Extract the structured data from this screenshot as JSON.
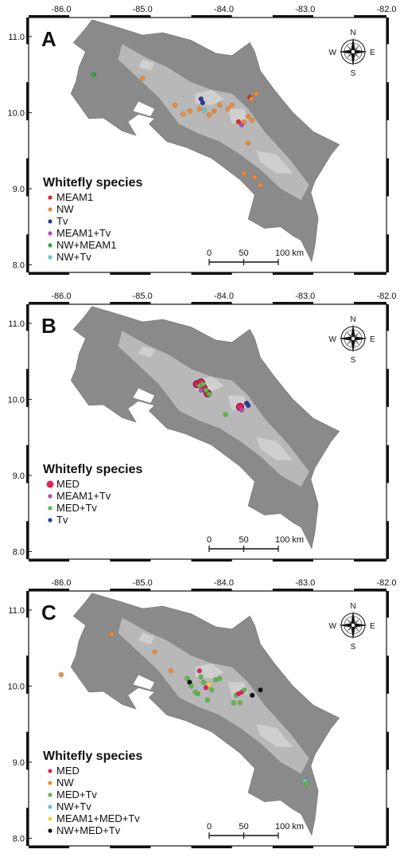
{
  "colors": {
    "MEAM1": "#e0262e",
    "NW": "#f08a36",
    "Tv": "#2b3c9c",
    "MEAM1+Tv": "#b14fb5",
    "NW+MEAM1": "#3d9a47",
    "NW+Tv": "#67c8c4",
    "MED": "#e0245e",
    "MED+Tv": "#5fb84a",
    "MEAM1+MED+Tv": "#f2d23a",
    "NW+MED+Tv": "#111111",
    "land": "#8a8a8a",
    "highland": "#cfcfcf"
  },
  "map": {
    "lon_ticks": [
      "-86.0",
      "-85.0",
      "-84.0",
      "-83.0",
      "-82.0"
    ],
    "lat_ticks": [
      "11.0",
      "10.0",
      "9.0",
      "8.0"
    ],
    "lon_range": [
      -86.4,
      -82.0
    ],
    "lat_range": [
      7.9,
      11.25
    ],
    "compass": {
      "n": "N",
      "s": "S",
      "e": "E",
      "w": "W"
    },
    "scale": {
      "t0": "0",
      "t1": "50",
      "t2": "100 km"
    }
  },
  "panels": [
    {
      "letter": "A",
      "legend_title": "Whitefly species",
      "legend": [
        {
          "label": "MEAM1",
          "key": "MEAM1"
        },
        {
          "label": "NW",
          "key": "NW"
        },
        {
          "label": "Tv",
          "key": "Tv"
        },
        {
          "label": "MEAM1+Tv",
          "key": "MEAM1+Tv"
        },
        {
          "label": "NW+MEAM1",
          "key": "NW+MEAM1"
        },
        {
          "label": "NW+Tv",
          "key": "NW+Tv"
        }
      ],
      "points": [
        {
          "lon": -85.6,
          "lat": 10.5,
          "key": "NW+MEAM1"
        },
        {
          "lon": -85.0,
          "lat": 10.45,
          "key": "NW"
        },
        {
          "lon": -84.6,
          "lat": 10.1,
          "key": "NW"
        },
        {
          "lon": -84.5,
          "lat": 9.98,
          "key": "NW"
        },
        {
          "lon": -84.42,
          "lat": 10.02,
          "key": "NW"
        },
        {
          "lon": -84.28,
          "lat": 10.18,
          "key": "Tv"
        },
        {
          "lon": -84.26,
          "lat": 10.13,
          "key": "Tv"
        },
        {
          "lon": -84.3,
          "lat": 10.05,
          "key": "NW"
        },
        {
          "lon": -84.24,
          "lat": 10.03,
          "key": "NW+Tv"
        },
        {
          "lon": -84.18,
          "lat": 9.97,
          "key": "NW"
        },
        {
          "lon": -84.12,
          "lat": 10.02,
          "key": "NW"
        },
        {
          "lon": -84.05,
          "lat": 10.1,
          "key": "NW"
        },
        {
          "lon": -83.95,
          "lat": 10.05,
          "key": "NW"
        },
        {
          "lon": -83.9,
          "lat": 10.1,
          "key": "NW"
        },
        {
          "lon": -83.82,
          "lat": 9.88,
          "key": "MEAM1"
        },
        {
          "lon": -83.78,
          "lat": 9.84,
          "key": "MEAM1+Tv"
        },
        {
          "lon": -83.75,
          "lat": 9.88,
          "key": "NW"
        },
        {
          "lon": -83.7,
          "lat": 9.95,
          "key": "NW"
        },
        {
          "lon": -83.65,
          "lat": 9.9,
          "key": "NW"
        },
        {
          "lon": -83.68,
          "lat": 10.2,
          "key": "MEAM1"
        },
        {
          "lon": -83.66,
          "lat": 10.18,
          "key": "NW"
        },
        {
          "lon": -83.6,
          "lat": 10.25,
          "key": "NW"
        },
        {
          "lon": -83.7,
          "lat": 9.6,
          "key": "NW"
        },
        {
          "lon": -83.75,
          "lat": 9.2,
          "key": "NW"
        },
        {
          "lon": -83.62,
          "lat": 9.15,
          "key": "NW"
        },
        {
          "lon": -83.55,
          "lat": 9.05,
          "key": "NW"
        }
      ]
    },
    {
      "letter": "B",
      "legend_title": "Whitefly species",
      "legend": [
        {
          "label": "MED",
          "key": "MED",
          "big": true
        },
        {
          "label": "MEAM1+Tv",
          "key": "MEAM1+Tv"
        },
        {
          "label": "MED+Tv",
          "key": "MED+Tv"
        },
        {
          "label": "Tv",
          "key": "Tv"
        }
      ],
      "points": [
        {
          "lon": -84.33,
          "lat": 10.2,
          "key": "MED",
          "big": true
        },
        {
          "lon": -84.28,
          "lat": 10.22,
          "key": "MED",
          "big": true
        },
        {
          "lon": -84.25,
          "lat": 10.15,
          "key": "MED",
          "big": true
        },
        {
          "lon": -84.2,
          "lat": 10.08,
          "key": "MED",
          "big": true
        },
        {
          "lon": -84.3,
          "lat": 10.18,
          "key": "MED+Tv"
        },
        {
          "lon": -84.26,
          "lat": 10.2,
          "key": "MED+Tv"
        },
        {
          "lon": -84.22,
          "lat": 10.12,
          "key": "MED+Tv"
        },
        {
          "lon": -84.18,
          "lat": 10.07,
          "key": "MED+Tv"
        },
        {
          "lon": -84.28,
          "lat": 10.12,
          "key": "MEAM1+Tv"
        },
        {
          "lon": -83.98,
          "lat": 9.8,
          "key": "MED+Tv"
        },
        {
          "lon": -83.8,
          "lat": 9.9,
          "key": "MED",
          "big": true
        },
        {
          "lon": -83.78,
          "lat": 9.86,
          "key": "MEAM1+Tv"
        },
        {
          "lon": -83.72,
          "lat": 9.95,
          "key": "Tv"
        },
        {
          "lon": -83.7,
          "lat": 9.92,
          "key": "Tv"
        }
      ]
    },
    {
      "letter": "C",
      "legend_title": "Whitefly species",
      "legend": [
        {
          "label": "MED",
          "key": "MED"
        },
        {
          "label": "NW",
          "key": "NW"
        },
        {
          "label": "MED+Tv",
          "key": "MED+Tv"
        },
        {
          "label": "NW+Tv",
          "key": "NW+Tv"
        },
        {
          "label": "MEAM1+MED+Tv",
          "key": "MEAM1+MED+Tv"
        },
        {
          "label": "NW+MED+Tv",
          "key": "NW+MED+Tv"
        }
      ],
      "points": [
        {
          "lon": -85.38,
          "lat": 10.68,
          "key": "NW"
        },
        {
          "lon": -84.85,
          "lat": 10.45,
          "key": "NW"
        },
        {
          "lon": -86.0,
          "lat": 10.15,
          "key": "NW"
        },
        {
          "lon": -84.65,
          "lat": 10.2,
          "key": "NW"
        },
        {
          "lon": -84.45,
          "lat": 10.1,
          "key": "MED+Tv"
        },
        {
          "lon": -84.42,
          "lat": 10.05,
          "key": "NW+MED+Tv"
        },
        {
          "lon": -84.4,
          "lat": 10.0,
          "key": "MED+Tv"
        },
        {
          "lon": -84.3,
          "lat": 10.2,
          "key": "MED"
        },
        {
          "lon": -84.28,
          "lat": 10.12,
          "key": "MED+Tv"
        },
        {
          "lon": -84.25,
          "lat": 10.05,
          "key": "MED+Tv"
        },
        {
          "lon": -84.22,
          "lat": 9.98,
          "key": "MED"
        },
        {
          "lon": -84.18,
          "lat": 10.02,
          "key": "MEAM1+MED+Tv"
        },
        {
          "lon": -84.15,
          "lat": 9.95,
          "key": "MED+Tv"
        },
        {
          "lon": -84.1,
          "lat": 10.08,
          "key": "MED+Tv"
        },
        {
          "lon": -84.05,
          "lat": 10.1,
          "key": "MED+Tv"
        },
        {
          "lon": -84.32,
          "lat": 9.9,
          "key": "MED+Tv"
        },
        {
          "lon": -84.35,
          "lat": 9.92,
          "key": "MED+Tv"
        },
        {
          "lon": -84.2,
          "lat": 9.82,
          "key": "MED+Tv"
        },
        {
          "lon": -83.85,
          "lat": 9.88,
          "key": "MED+Tv"
        },
        {
          "lon": -83.82,
          "lat": 9.9,
          "key": "MED"
        },
        {
          "lon": -83.78,
          "lat": 9.92,
          "key": "MED"
        },
        {
          "lon": -83.75,
          "lat": 9.95,
          "key": "MED+Tv"
        },
        {
          "lon": -83.88,
          "lat": 9.78,
          "key": "MED+Tv"
        },
        {
          "lon": -83.8,
          "lat": 9.78,
          "key": "MED+Tv"
        },
        {
          "lon": -83.65,
          "lat": 9.88,
          "key": "NW+MED+Tv"
        },
        {
          "lon": -83.55,
          "lat": 9.95,
          "key": "NW+MED+Tv"
        },
        {
          "lon": -83.0,
          "lat": 8.75,
          "key": "NW+Tv"
        },
        {
          "lon": -82.98,
          "lat": 8.72,
          "key": "MED+Tv"
        }
      ]
    }
  ]
}
